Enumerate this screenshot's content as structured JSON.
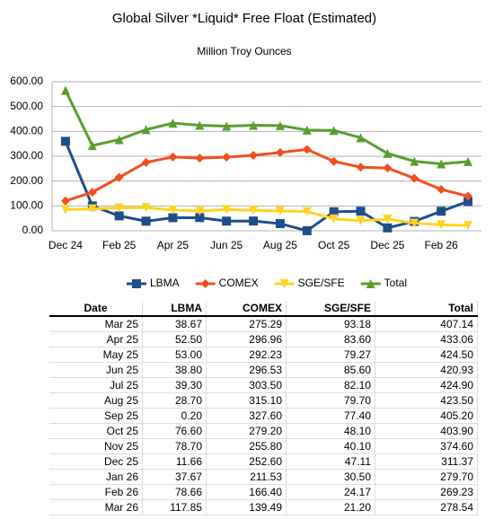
{
  "chart_data": {
    "type": "line",
    "title": "Global Silver *Liquid* Free Float (Estimated)",
    "subtitle": "Million Troy Ounces",
    "categories": [
      "Dec 24",
      null,
      "Feb 25",
      null,
      "Apr 25",
      null,
      "Jun 25",
      null,
      "Aug 25",
      null,
      "Oct 25",
      null,
      "Dec 25",
      null,
      "Feb 26",
      null
    ],
    "series": [
      {
        "name": "LBMA",
        "color": "#1f4e8c",
        "marker": "square",
        "values": [
          360,
          100,
          60,
          38.67,
          52.5,
          53.0,
          38.8,
          39.3,
          28.7,
          0.2,
          76.6,
          78.7,
          11.66,
          37.67,
          78.66,
          117.85
        ]
      },
      {
        "name": "COMEX",
        "color": "#f0501e",
        "marker": "diamond",
        "values": [
          120,
          155,
          215,
          275.29,
          296.96,
          292.23,
          296.53,
          303.5,
          315.1,
          327.6,
          279.2,
          255.8,
          252.6,
          211.53,
          166.4,
          139.49
        ]
      },
      {
        "name": "SGE/SFE",
        "color": "#ffd320",
        "marker": "triangle-down",
        "values": [
          85,
          88,
          92,
          93.18,
          83.6,
          79.27,
          85.6,
          82.1,
          79.7,
          77.4,
          48.1,
          40.1,
          47.11,
          30.5,
          24.17,
          21.2
        ]
      },
      {
        "name": "Total",
        "color": "#5a9e2f",
        "marker": "triangle-up",
        "values": [
          565,
          343,
          367,
          407.14,
          433.06,
          424.5,
          420.93,
          424.9,
          423.5,
          405.2,
          403.9,
          374.6,
          311.37,
          279.7,
          269.23,
          278.54
        ]
      }
    ],
    "ylim": [
      0,
      600
    ],
    "yticks": [
      {
        "value": 0,
        "label": "0.00"
      },
      {
        "value": 100,
        "label": "100.00"
      },
      {
        "value": 200,
        "label": "200.00"
      },
      {
        "value": 300,
        "label": "300.00"
      },
      {
        "value": 400,
        "label": "400.00"
      },
      {
        "value": 500,
        "label": "500.00"
      },
      {
        "value": 600,
        "label": "600.00"
      }
    ],
    "grid": true,
    "legend": "bottom"
  },
  "table": {
    "columns": [
      "Date",
      "LBMA",
      "COMEX",
      "SGE/SFE",
      "Total"
    ],
    "rows": [
      [
        "Mar 25",
        "38.67",
        "275.29",
        "93.18",
        "407.14"
      ],
      [
        "Apr 25",
        "52.50",
        "296.96",
        "83.60",
        "433.06"
      ],
      [
        "May 25",
        "53.00",
        "292.23",
        "79.27",
        "424.50"
      ],
      [
        "Jun 25",
        "38.80",
        "296.53",
        "85.60",
        "420.93"
      ],
      [
        "Jul 25",
        "39.30",
        "303.50",
        "82.10",
        "424.90"
      ],
      [
        "Aug 25",
        "28.70",
        "315.10",
        "79.70",
        "423.50"
      ],
      [
        "Sep 25",
        "0.20",
        "327.60",
        "77.40",
        "405.20"
      ],
      [
        "Oct 25",
        "76.60",
        "279.20",
        "48.10",
        "403.90"
      ],
      [
        "Nov 25",
        "78.70",
        "255.80",
        "40.10",
        "374.60"
      ],
      [
        "Dec 25",
        "11.66",
        "252.60",
        "47.11",
        "311.37"
      ],
      [
        "Jan 26",
        "37.67",
        "211.53",
        "30.50",
        "279.70"
      ],
      [
        "Feb 26",
        "78.66",
        "166.40",
        "24.17",
        "269.23"
      ],
      [
        "Mar 26",
        "117.85",
        "139.49",
        "21.20",
        "278.54"
      ]
    ]
  }
}
